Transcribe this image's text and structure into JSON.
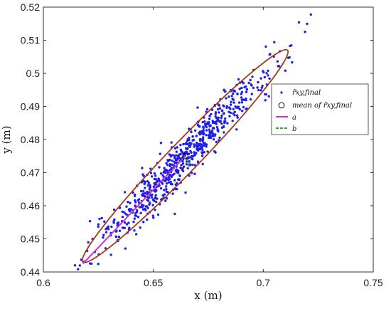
{
  "chart_data": {
    "type": "scatter",
    "xlabel": "x (m)",
    "ylabel": "y (m)",
    "xlim": [
      0.6,
      0.75
    ],
    "ylim": [
      0.44,
      0.52
    ],
    "xticks": [
      "0.6",
      "0.65",
      "0.7",
      "0.75"
    ],
    "yticks": [
      "0.44",
      "0.45",
      "0.46",
      "0.47",
      "0.48",
      "0.49",
      "0.5",
      "0.51",
      "0.52"
    ],
    "legend": {
      "placement": "right",
      "entries": [
        {
          "label": "r̃xy,final",
          "marker": "dot",
          "color": "#1f1fe6"
        },
        {
          "label": "mean of r̃xy,final",
          "marker": "open-circle",
          "color": "#000000"
        },
        {
          "label": "a",
          "marker": "solid-line",
          "color": "#cc33cc"
        },
        {
          "label": "b",
          "marker": "dashed-line",
          "color": "#33aa33"
        }
      ]
    },
    "mean": [
      0.6645,
      0.475
    ],
    "ellipse": {
      "center": [
        0.6645,
        0.475
      ],
      "vertex_low": [
        0.618,
        0.4425
      ],
      "vertex_high": [
        0.711,
        0.5065
      ],
      "minor_half_width_y": 0.0065,
      "color": "#a33a1a"
    },
    "axis_a": {
      "from": [
        0.6645,
        0.475
      ],
      "to": [
        0.618,
        0.4425
      ],
      "color": "#cc33cc"
    },
    "axis_b": {
      "from": [
        0.6645,
        0.475
      ],
      "to": [
        0.6665,
        0.4725
      ],
      "color": "#33aa33"
    },
    "point_cloud": {
      "n_points": 700,
      "center": [
        0.6645,
        0.475
      ],
      "slope": 0.69,
      "x_sd": 0.021,
      "y_spread_sd": 0.0035,
      "color": "#1f1fe6"
    }
  }
}
